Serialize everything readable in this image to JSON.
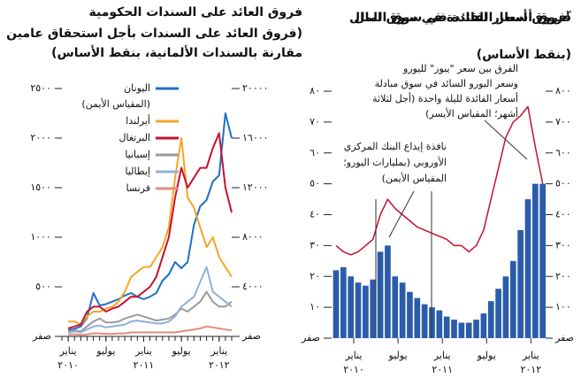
{
  "chart_data": [
    {
      "type": "line",
      "title": "فروق العائد على السندات الحكومية",
      "subtitle": [
        "(فروق العائد على السندات بأجل استحقاق عامين",
        "مقارنة بالسندات الألمانية، بنقط الأساس)"
      ],
      "x": [
        "2010-01",
        "2010-02",
        "2010-03",
        "2010-04",
        "2010-05",
        "2010-06",
        "2010-07",
        "2010-08",
        "2010-09",
        "2010-10",
        "2010-11",
        "2010-12",
        "2011-01",
        "2011-02",
        "2011-03",
        "2011-04",
        "2011-05",
        "2011-06",
        "2011-07",
        "2011-08",
        "2011-09",
        "2011-10",
        "2011-11",
        "2011-12",
        "2012-01",
        "2012-02",
        "2012-03"
      ],
      "xlim": [
        "2009-12",
        "2012-03"
      ],
      "xticks": [
        {
          "value": "2010-01",
          "label": "يناير"
        },
        {
          "value": "2010-07",
          "label": "يوليو"
        },
        {
          "value": "2011-01",
          "label": "يناير"
        },
        {
          "value": "2011-07",
          "label": "يوليو"
        },
        {
          "value": "2012-01",
          "label": "يناير"
        }
      ],
      "xtick_years": [
        {
          "value": "2010-01",
          "label": "٢٠١٠"
        },
        {
          "value": "2011-01",
          "label": "٢٠١١"
        },
        {
          "value": "2012-01",
          "label": "٢٠١٢"
        }
      ],
      "ylim": [
        0,
        2500
      ],
      "yticks": [
        {
          "value": 0,
          "label": "صفر"
        },
        {
          "value": 500,
          "label": "٥٠٠"
        },
        {
          "value": 1000,
          "label": "١٠٠٠"
        },
        {
          "value": 1500,
          "label": "١٥٠٠"
        },
        {
          "value": 2000,
          "label": "٢٠٠٠"
        },
        {
          "value": 2500,
          "label": "٢٥٠٠"
        }
      ],
      "y2lim": [
        0,
        20000
      ],
      "y2ticks": [
        {
          "value": 0,
          "label": "صفر"
        },
        {
          "value": 4000,
          "label": "٤٠٠٠"
        },
        {
          "value": 8000,
          "label": "٨٠٠٠"
        },
        {
          "value": 12000,
          "label": "١٢٠٠٠"
        },
        {
          "value": 16000,
          "label": "١٦٠٠٠"
        },
        {
          "value": 20000,
          "label": "٢٠٠٠٠"
        }
      ],
      "legend": "top-left",
      "series": [
        {
          "name": "اليونان",
          "legend_note": "(المقياس الأيمن)",
          "axis": "y2",
          "color": "#1f6fc4",
          "values": [
            500,
            600,
            800,
            1500,
            3500,
            2500,
            2600,
            2800,
            3000,
            3300,
            3500,
            3200,
            3000,
            3200,
            3500,
            4500,
            5000,
            6000,
            5500,
            6000,
            9000,
            10500,
            11000,
            12500,
            13000,
            18000,
            16000
          ]
        },
        {
          "name": "أيرلندا",
          "color": "#f5a623",
          "values": [
            150,
            150,
            120,
            200,
            250,
            250,
            280,
            300,
            350,
            450,
            600,
            650,
            700,
            700,
            800,
            900,
            1100,
            1600,
            2000,
            1400,
            1300,
            1100,
            900,
            1000,
            800,
            700,
            600
          ]
        },
        {
          "name": "البرتغال",
          "color": "#c8102e",
          "values": [
            80,
            100,
            120,
            250,
            300,
            300,
            250,
            280,
            300,
            350,
            400,
            400,
            450,
            500,
            600,
            800,
            1000,
            1400,
            1700,
            1500,
            1600,
            1700,
            1700,
            1900,
            2050,
            1500,
            1250
          ]
        },
        {
          "name": "إسبانيا",
          "color": "#9a9a9a",
          "values": [
            50,
            60,
            50,
            100,
            150,
            180,
            140,
            140,
            150,
            180,
            200,
            220,
            200,
            180,
            160,
            170,
            180,
            220,
            280,
            250,
            300,
            350,
            450,
            350,
            300,
            300,
            350
          ]
        },
        {
          "name": "إيطاليا",
          "color": "#8fb0d8",
          "values": [
            40,
            50,
            40,
            70,
            100,
            110,
            90,
            100,
            110,
            120,
            150,
            160,
            150,
            140,
            130,
            130,
            150,
            200,
            300,
            350,
            400,
            550,
            700,
            450,
            400,
            350,
            300
          ]
        },
        {
          "name": "فرنسا",
          "color": "#e88a7a",
          "values": [
            20,
            20,
            15,
            20,
            30,
            30,
            25,
            25,
            30,
            30,
            40,
            40,
            40,
            40,
            40,
            40,
            40,
            40,
            50,
            60,
            70,
            80,
            100,
            90,
            80,
            70,
            60
          ]
        }
      ]
    },
    {
      "type": "combo",
      "title": "فروق أسعار الفائدة في سوق المال",
      "title_note": "٢",
      "subtitle": [
        "(بنقط الأساس)"
      ],
      "x": [
        "2009-11",
        "2009-12",
        "2010-01",
        "2010-02",
        "2010-03",
        "2010-04",
        "2010-05",
        "2010-06",
        "2010-07",
        "2010-08",
        "2010-09",
        "2010-10",
        "2010-11",
        "2010-12",
        "2011-01",
        "2011-02",
        "2011-03",
        "2011-04",
        "2011-05",
        "2011-06",
        "2011-07",
        "2011-08",
        "2011-09",
        "2011-10",
        "2011-11",
        "2011-12",
        "2012-01",
        "2012-02",
        "2012-03"
      ],
      "xlim": [
        "2009-10",
        "2012-03"
      ],
      "xticks": [
        {
          "value": "2010-01",
          "label": "يناير"
        },
        {
          "value": "2010-07",
          "label": "يوليو"
        },
        {
          "value": "2011-01",
          "label": "يناير"
        },
        {
          "value": "2011-07",
          "label": "يوليو"
        },
        {
          "value": "2012-01",
          "label": "يناير"
        }
      ],
      "xtick_years": [
        {
          "value": "2010-01",
          "label": "٢٠١٠"
        },
        {
          "value": "2011-01",
          "label": "٢٠١١"
        },
        {
          "value": "2012-01",
          "label": "٢٠١٢"
        }
      ],
      "ylim": [
        0,
        80
      ],
      "yticks": [
        {
          "value": 0,
          "label": "صفر"
        },
        {
          "value": 10,
          "label": "١٠"
        },
        {
          "value": 20,
          "label": "٢٠"
        },
        {
          "value": 30,
          "label": "٣٠"
        },
        {
          "value": 40,
          "label": "٤٠"
        },
        {
          "value": 50,
          "label": "٥٠"
        },
        {
          "value": 60,
          "label": "٦٠"
        },
        {
          "value": 70,
          "label": "٧٠"
        },
        {
          "value": 80,
          "label": "٨٠"
        }
      ],
      "y2lim": [
        0,
        800
      ],
      "y2ticks": [
        {
          "value": 0,
          "label": "صفر"
        },
        {
          "value": 100,
          "label": "١٠٠"
        },
        {
          "value": 200,
          "label": "٢٠٠"
        },
        {
          "value": 300,
          "label": "٣٠٠"
        },
        {
          "value": 400,
          "label": "٤٠٠"
        },
        {
          "value": 500,
          "label": "٥٠٠"
        },
        {
          "value": 600,
          "label": "٦٠٠"
        },
        {
          "value": 700,
          "label": "٧٠٠"
        },
        {
          "value": 800,
          "label": "٨٠٠"
        }
      ],
      "series": [
        {
          "kind": "bar",
          "axis": "y2",
          "color": "#2a5caa",
          "name_lines": [
            "نافذة إيداع البنك المركزي",
            "الأوروبي (بمليارات اليورو؛",
            "المقياس الأيمن)"
          ],
          "values": [
            220,
            230,
            200,
            180,
            170,
            190,
            280,
            300,
            200,
            180,
            150,
            130,
            110,
            100,
            90,
            70,
            60,
            50,
            50,
            60,
            80,
            120,
            160,
            200,
            250,
            350,
            450,
            500,
            500
          ]
        },
        {
          "kind": "line",
          "color": "#c8102e",
          "name_lines": [
            "الفرق بين سعر \"يبور\" لليورو",
            "وسعر اليورو السائد في سوق مبادلة",
            "أسعار الفائدة لليلة واحدة (أجل لثلاثة",
            "أشهر؛ المقياس الأيسر)"
          ],
          "values": [
            30,
            28,
            27,
            28,
            30,
            32,
            40,
            45,
            42,
            40,
            38,
            36,
            35,
            34,
            33,
            32,
            30,
            30,
            28,
            30,
            35,
            45,
            55,
            65,
            70,
            72,
            75,
            62,
            50
          ]
        }
      ]
    }
  ]
}
